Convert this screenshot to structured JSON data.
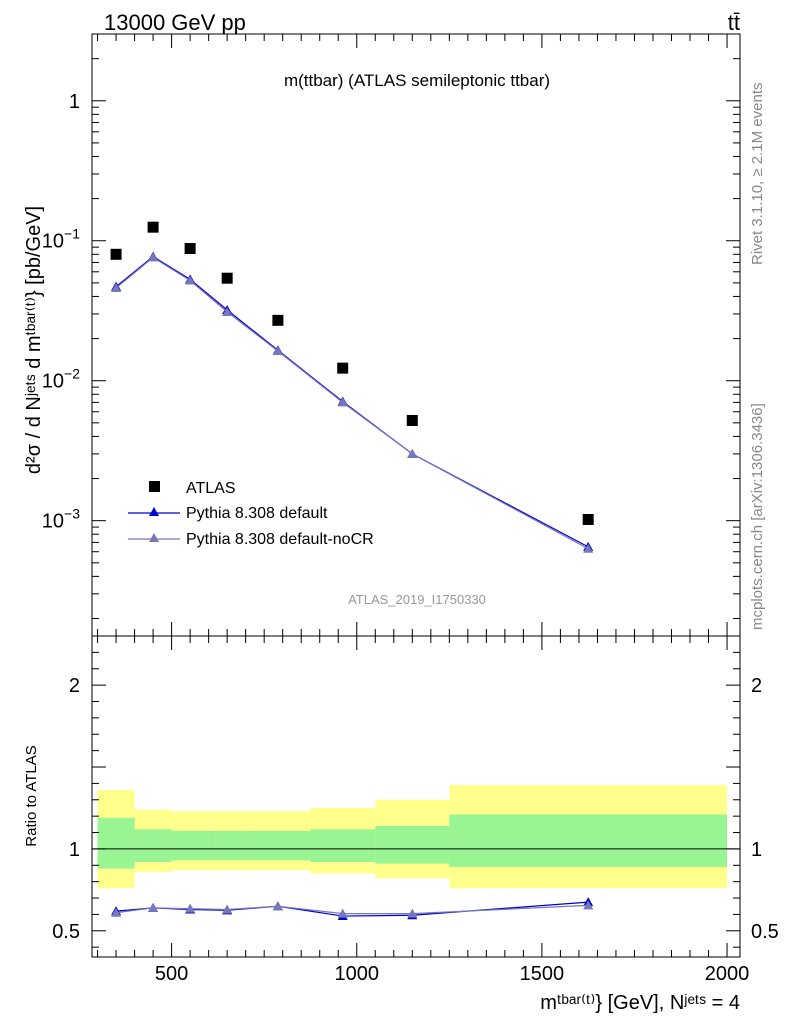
{
  "header": {
    "energy_label": "13000 GeV pp",
    "process_label": "tt̄"
  },
  "side_labels": {
    "rivet": "Rivet 3.1.10, ≥ 2.1M events",
    "mcplots": "mcplots.cern.ch [arXiv:1306.3436]"
  },
  "chart_data": [
    {
      "type": "scatter",
      "panel": "main",
      "title": "m(ttbar) (ATLAS semileptonic ttbar)",
      "watermark": "ATLAS_2019_I1750330",
      "ylabel": "d²σ / d Nʲᵉᵗˢ d mᵗᵇᵃʳ⁽ᵗ⁾} [pb/GeV]",
      "yscale": "log",
      "ylim": [
        0.00015,
        3
      ],
      "xlim": [
        285,
        2035
      ],
      "y_ticks": [
        {
          "v": 1,
          "base": "1",
          "exp": ""
        },
        {
          "v": 0.1,
          "base": "10",
          "exp": "−1"
        },
        {
          "v": 0.01,
          "base": "10",
          "exp": "−2"
        },
        {
          "v": 0.001,
          "base": "10",
          "exp": "−3"
        }
      ],
      "legend_position": "bottom-left",
      "series": [
        {
          "name": "ATLAS",
          "marker": "square",
          "color": "#000000",
          "x": [
            350,
            450,
            550,
            650,
            787,
            962,
            1150,
            1625
          ],
          "y": [
            0.08,
            0.125,
            0.088,
            0.054,
            0.027,
            0.0123,
            0.0052,
            0.00102
          ]
        },
        {
          "name": "Pythia 8.308 default",
          "marker": "triangle",
          "color": "#0000cc",
          "x": [
            350,
            450,
            550,
            650,
            787,
            962,
            1150,
            1625
          ],
          "y": [
            0.047,
            0.077,
            0.053,
            0.032,
            0.0165,
            0.0071,
            0.003,
            0.00065
          ]
        },
        {
          "name": "Pythia 8.308 default-noCR",
          "marker": "triangle",
          "color": "#7777bb",
          "x": [
            350,
            450,
            550,
            650,
            787,
            962,
            1150,
            1625
          ],
          "y": [
            0.046,
            0.076,
            0.052,
            0.031,
            0.0163,
            0.007,
            0.003,
            0.00063
          ]
        }
      ]
    },
    {
      "type": "line",
      "panel": "ratio",
      "ylabel": "Ratio to ATLAS",
      "xlabel": "mᵗᵇᵃʳ⁽ᵗ⁾} [GeV], Nʲᵉᵗˢ = 4",
      "xlim": [
        285,
        2035
      ],
      "ylim": [
        0.34,
        2.3
      ],
      "x_ticks": [
        500,
        1000,
        1500,
        2000
      ],
      "y_ticks": [
        0.5,
        1,
        2
      ],
      "bands": [
        {
          "x0": 300,
          "x1": 400,
          "stat": [
            0.88,
            1.19
          ],
          "total": [
            0.76,
            1.36
          ]
        },
        {
          "x0": 400,
          "x1": 500,
          "stat": [
            0.92,
            1.12
          ],
          "total": [
            0.86,
            1.24
          ]
        },
        {
          "x0": 500,
          "x1": 600,
          "stat": [
            0.93,
            1.11
          ],
          "total": [
            0.87,
            1.23
          ]
        },
        {
          "x0": 600,
          "x1": 700,
          "stat": [
            0.93,
            1.11
          ],
          "total": [
            0.87,
            1.23
          ]
        },
        {
          "x0": 700,
          "x1": 875,
          "stat": [
            0.93,
            1.11
          ],
          "total": [
            0.87,
            1.23
          ]
        },
        {
          "x0": 875,
          "x1": 1050,
          "stat": [
            0.92,
            1.12
          ],
          "total": [
            0.85,
            1.25
          ]
        },
        {
          "x0": 1050,
          "x1": 1250,
          "stat": [
            0.91,
            1.14
          ],
          "total": [
            0.82,
            1.3
          ]
        },
        {
          "x0": 1250,
          "x1": 2000,
          "stat": [
            0.89,
            1.21
          ],
          "total": [
            0.76,
            1.39
          ]
        }
      ],
      "series": [
        {
          "name": "Pythia 8.308 default",
          "color": "#0000cc",
          "x": [
            350,
            450,
            550,
            650,
            787,
            962,
            1150,
            1625
          ],
          "y": [
            0.62,
            0.64,
            0.63,
            0.625,
            0.65,
            0.59,
            0.595,
            0.675
          ]
        },
        {
          "name": "Pythia 8.308 default-noCR",
          "color": "#7777bb",
          "x": [
            350,
            450,
            550,
            650,
            787,
            962,
            1150,
            1625
          ],
          "y": [
            0.61,
            0.64,
            0.635,
            0.63,
            0.65,
            0.605,
            0.605,
            0.655
          ]
        }
      ]
    }
  ]
}
